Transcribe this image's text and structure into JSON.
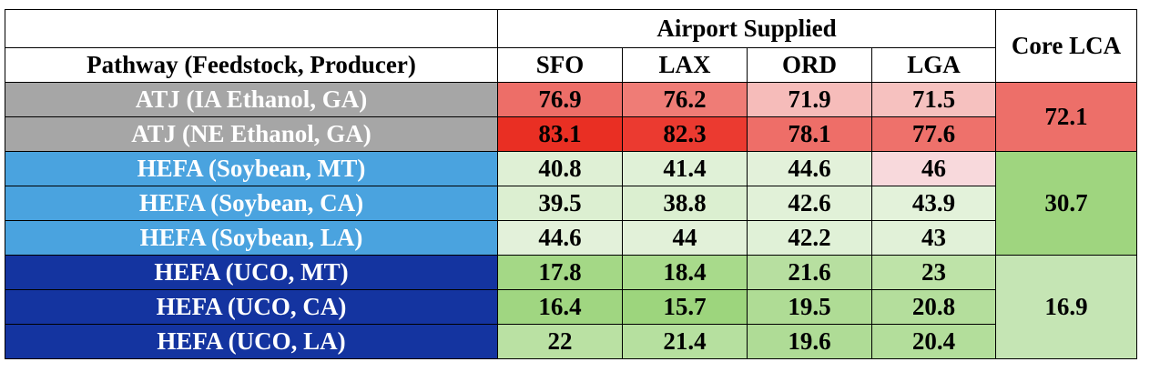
{
  "table": {
    "group_header": "Airport Supplied",
    "pathway_header": "Pathway (Feedstock, Producer)",
    "core_header": "Core LCA",
    "airports": [
      "SFO",
      "LAX",
      "ORD",
      "LGA"
    ],
    "groups": [
      {
        "color": "#a6a6a6",
        "core_value": "72.1",
        "core_color": "#ed6f69",
        "rows": [
          {
            "pathway": "ATJ (IA Ethanol, GA)",
            "values": [
              "76.9",
              "76.2",
              "71.9",
              "71.5"
            ],
            "colors": [
              "#ed6e68",
              "#ef7c76",
              "#f6bcba",
              "#f6c1bf"
            ]
          },
          {
            "pathway": "ATJ (NE Ethanol, GA)",
            "values": [
              "83.1",
              "82.3",
              "78.1",
              "77.6"
            ],
            "colors": [
              "#e92f23",
              "#eb3a30",
              "#ee6e68",
              "#ee716b"
            ]
          }
        ]
      },
      {
        "color": "#4aa3df",
        "core_value": "30.7",
        "core_color": "#9fd57f",
        "rows": [
          {
            "pathway": "HEFA (Soybean, MT)",
            "values": [
              "40.8",
              "41.4",
              "44.6",
              "46"
            ],
            "colors": [
              "#dff0d5",
              "#e0f1d7",
              "#e3f1da",
              "#f8d9dc"
            ]
          },
          {
            "pathway": "HEFA (Soybean, CA)",
            "values": [
              "39.5",
              "38.8",
              "42.6",
              "43.9"
            ],
            "colors": [
              "#dcefd1",
              "#dbefd0",
              "#e1f1d8",
              "#e3f2da"
            ]
          },
          {
            "pathway": "HEFA (Soybean, LA)",
            "values": [
              "44.6",
              "44",
              "42.2",
              "43"
            ],
            "colors": [
              "#e3f1da",
              "#e2f1d9",
              "#e0f1d7",
              "#e1f1d8"
            ]
          }
        ]
      },
      {
        "color": "#1434a0",
        "core_value": "16.9",
        "core_color": "#c5e5b4",
        "rows": [
          {
            "pathway": "HEFA (UCO, MT)",
            "values": [
              "17.8",
              "18.4",
              "21.6",
              "23"
            ],
            "colors": [
              "#a4d886",
              "#a8da8b",
              "#b7dfa0",
              "#bee3a8"
            ]
          },
          {
            "pathway": "HEFA (UCO, CA)",
            "values": [
              "16.4",
              "15.7",
              "19.5",
              "20.8"
            ],
            "colors": [
              "#a0d681",
              "#9dd57d",
              "#afdc95",
              "#b4de9c"
            ]
          },
          {
            "pathway": "HEFA (UCO, LA)",
            "values": [
              "22",
              "21.4",
              "19.6",
              "20.4"
            ],
            "colors": [
              "#bae1a3",
              "#b6e09f",
              "#afdc96",
              "#b3de9b"
            ]
          }
        ]
      }
    ]
  }
}
